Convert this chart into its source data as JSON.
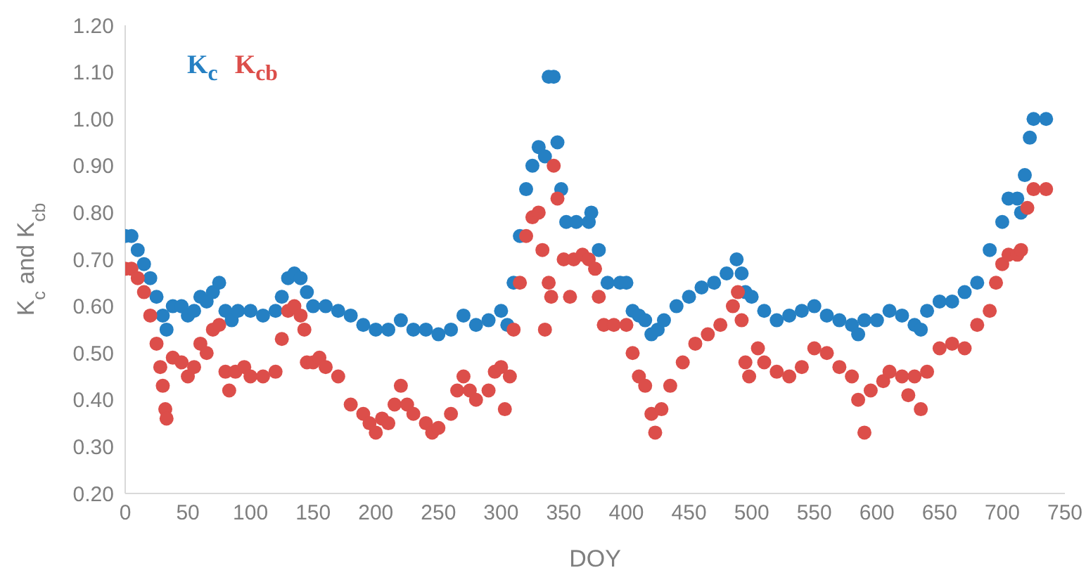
{
  "chart_data": {
    "type": "scatter",
    "xlabel": "DOY",
    "ylabel": "K$_{c}$ and K$_{cb}$",
    "xlim": [
      0,
      750
    ],
    "xticks": [
      0,
      50,
      100,
      150,
      200,
      250,
      300,
      350,
      400,
      450,
      500,
      550,
      600,
      650,
      700,
      750
    ],
    "ylim": [
      0.2,
      1.2
    ],
    "yticks": [
      {
        "value": 0.2,
        "label": "0.20"
      },
      {
        "value": 0.3,
        "label": "0.30"
      },
      {
        "value": 0.4,
        "label": "0.40"
      },
      {
        "value": 0.5,
        "label": "0.50"
      },
      {
        "value": 0.6,
        "label": "0.60"
      },
      {
        "value": 0.7,
        "label": "0.70"
      },
      {
        "value": 0.8,
        "label": "0.80"
      },
      {
        "value": 0.9,
        "label": "0.90"
      },
      {
        "value": 1.0,
        "label": "1.00"
      },
      {
        "value": 1.1,
        "label": "1.10"
      },
      {
        "value": 1.2,
        "label": "1.20"
      }
    ],
    "grid": false,
    "legend": "top left",
    "marker": "circle",
    "series": [
      {
        "name": "K$_{c}$",
        "color": "#2580c3",
        "x": [
          0,
          5,
          10,
          15,
          20,
          25,
          30,
          33,
          38,
          45,
          50,
          55,
          60,
          65,
          70,
          75,
          80,
          85,
          90,
          100,
          110,
          120,
          125,
          130,
          135,
          140,
          145,
          150,
          160,
          170,
          180,
          190,
          200,
          210,
          220,
          230,
          240,
          250,
          260,
          270,
          280,
          290,
          300,
          305,
          310,
          315,
          320,
          325,
          330,
          335,
          338,
          342,
          345,
          348,
          352,
          360,
          370,
          372,
          378,
          385,
          395,
          400,
          405,
          410,
          415,
          420,
          425,
          430,
          440,
          450,
          460,
          470,
          480,
          488,
          492,
          495,
          500,
          510,
          520,
          530,
          540,
          550,
          560,
          570,
          580,
          585,
          590,
          600,
          610,
          620,
          630,
          635,
          640,
          650,
          660,
          670,
          680,
          690,
          700,
          705,
          712,
          715,
          718,
          722,
          725,
          735
        ],
        "values": [
          0.75,
          0.75,
          0.72,
          0.69,
          0.66,
          0.62,
          0.58,
          0.55,
          0.6,
          0.6,
          0.58,
          0.59,
          0.62,
          0.61,
          0.63,
          0.65,
          0.59,
          0.57,
          0.59,
          0.59,
          0.58,
          0.59,
          0.62,
          0.66,
          0.67,
          0.66,
          0.63,
          0.6,
          0.6,
          0.59,
          0.58,
          0.56,
          0.55,
          0.55,
          0.57,
          0.55,
          0.55,
          0.54,
          0.55,
          0.58,
          0.56,
          0.57,
          0.59,
          0.56,
          0.65,
          0.75,
          0.85,
          0.9,
          0.94,
          0.92,
          1.09,
          1.09,
          0.95,
          0.85,
          0.78,
          0.78,
          0.78,
          0.8,
          0.72,
          0.65,
          0.65,
          0.65,
          0.59,
          0.58,
          0.57,
          0.54,
          0.55,
          0.57,
          0.6,
          0.62,
          0.64,
          0.65,
          0.67,
          0.7,
          0.67,
          0.63,
          0.62,
          0.59,
          0.57,
          0.58,
          0.59,
          0.6,
          0.58,
          0.57,
          0.56,
          0.54,
          0.57,
          0.57,
          0.59,
          0.58,
          0.56,
          0.55,
          0.59,
          0.61,
          0.61,
          0.63,
          0.65,
          0.72,
          0.78,
          0.83,
          0.83,
          0.8,
          0.88,
          0.96,
          1.0,
          1.0
        ]
      },
      {
        "name": "K$_{cb}$",
        "color": "#dc4e4a",
        "x": [
          0,
          5,
          10,
          15,
          20,
          25,
          28,
          30,
          32,
          33,
          38,
          45,
          50,
          55,
          60,
          65,
          70,
          75,
          80,
          83,
          88,
          95,
          100,
          110,
          120,
          125,
          130,
          135,
          140,
          143,
          145,
          150,
          155,
          160,
          170,
          180,
          190,
          195,
          200,
          205,
          210,
          215,
          220,
          225,
          230,
          240,
          245,
          250,
          260,
          265,
          270,
          275,
          280,
          290,
          295,
          300,
          303,
          307,
          310,
          315,
          320,
          325,
          330,
          333,
          335,
          338,
          340,
          342,
          345,
          350,
          355,
          358,
          365,
          370,
          375,
          378,
          382,
          390,
          400,
          405,
          410,
          415,
          420,
          423,
          428,
          435,
          445,
          455,
          465,
          475,
          485,
          489,
          492,
          495,
          498,
          505,
          510,
          520,
          530,
          540,
          550,
          560,
          570,
          580,
          585,
          590,
          595,
          605,
          610,
          620,
          625,
          630,
          635,
          640,
          650,
          660,
          670,
          680,
          690,
          695,
          700,
          705,
          712,
          715,
          720,
          725,
          735
        ],
        "values": [
          0.68,
          0.68,
          0.66,
          0.63,
          0.58,
          0.52,
          0.47,
          0.43,
          0.38,
          0.36,
          0.49,
          0.48,
          0.45,
          0.47,
          0.52,
          0.5,
          0.55,
          0.56,
          0.46,
          0.42,
          0.46,
          0.47,
          0.45,
          0.45,
          0.46,
          0.53,
          0.59,
          0.6,
          0.58,
          0.55,
          0.48,
          0.48,
          0.49,
          0.47,
          0.45,
          0.39,
          0.37,
          0.35,
          0.33,
          0.36,
          0.35,
          0.39,
          0.43,
          0.39,
          0.37,
          0.35,
          0.33,
          0.34,
          0.37,
          0.42,
          0.45,
          0.42,
          0.4,
          0.42,
          0.46,
          0.47,
          0.38,
          0.45,
          0.55,
          0.65,
          0.75,
          0.79,
          0.8,
          0.72,
          0.55,
          0.65,
          0.62,
          0.9,
          0.83,
          0.7,
          0.62,
          0.7,
          0.71,
          0.7,
          0.68,
          0.62,
          0.56,
          0.56,
          0.56,
          0.5,
          0.45,
          0.43,
          0.37,
          0.33,
          0.38,
          0.43,
          0.48,
          0.52,
          0.54,
          0.56,
          0.6,
          0.63,
          0.57,
          0.48,
          0.45,
          0.51,
          0.48,
          0.46,
          0.45,
          0.47,
          0.51,
          0.5,
          0.47,
          0.45,
          0.4,
          0.33,
          0.42,
          0.44,
          0.46,
          0.45,
          0.41,
          0.45,
          0.38,
          0.46,
          0.51,
          0.52,
          0.51,
          0.56,
          0.59,
          0.65,
          0.69,
          0.71,
          0.71,
          0.72,
          0.81,
          0.85,
          0.85
        ]
      }
    ]
  }
}
